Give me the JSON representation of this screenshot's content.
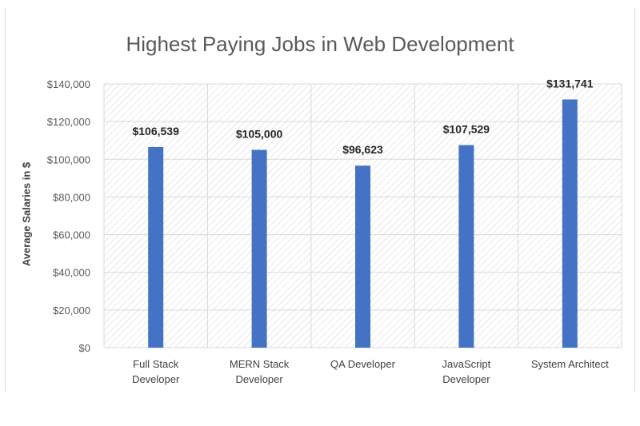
{
  "chart_data": {
    "type": "bar",
    "title": "Highest Paying Jobs in Web Development",
    "xlabel": "",
    "ylabel": "Average Salaries in $",
    "categories": [
      [
        "Full Stack",
        "Developer"
      ],
      [
        "MERN Stack",
        "Developer"
      ],
      [
        "QA Developer"
      ],
      [
        "JavaScript",
        "Developer"
      ],
      [
        "System Architect"
      ]
    ],
    "values": [
      106539,
      105000,
      96623,
      107529,
      131741
    ],
    "data_labels": [
      "$106,539",
      "$105,000",
      "$96,623",
      "$107,529",
      "$131,741"
    ],
    "ylim": [
      0,
      140000
    ],
    "yticks": [
      "$0",
      "$20,000",
      "$40,000",
      "$60,000",
      "$80,000",
      "$100,000",
      "$120,000",
      "$140,000"
    ],
    "grid": true,
    "legend": "none",
    "colors": {
      "bar": "#4472c4",
      "grid": "#d9d9d9",
      "hatch": "#d9d9d9"
    }
  }
}
